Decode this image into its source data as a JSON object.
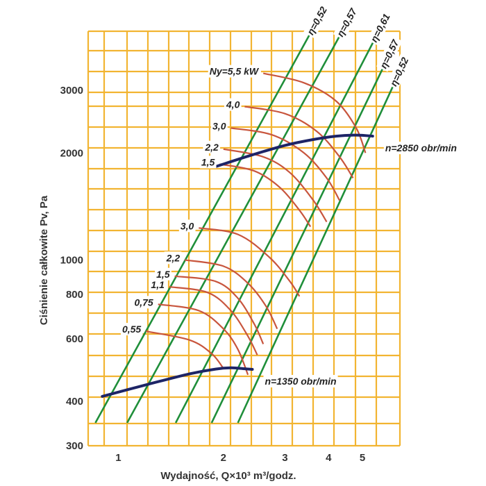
{
  "colors": {
    "grid": "#f2b431",
    "efficiency": "#1f8f3a",
    "power": "#c8553d",
    "speed": "#1d2466",
    "label_bg": "#ffffff"
  },
  "axes": {
    "xlabel": "Wydajność, Q×10³ m³/godz.",
    "ylabel": "Ciśnienie całkowite Pv, Pa"
  },
  "chart_data": {
    "type": "line",
    "title": "",
    "xlabel": "Wydajność, Q×10³ m³/godz.",
    "ylabel": "Ciśnienie całkowite Pv, Pa",
    "x_scale": "log",
    "y_scale": "log",
    "xlim": [
      0.82,
      6.4
    ],
    "ylim": [
      300,
      4400
    ],
    "x_ticks": [
      {
        "value": 1,
        "label": "1"
      },
      {
        "value": 2,
        "label": "2"
      },
      {
        "value": 3,
        "label": "3"
      },
      {
        "value": 4,
        "label": "4"
      },
      {
        "value": 5,
        "label": "5"
      }
    ],
    "y_ticks": [
      {
        "value": 300,
        "label": "300"
      },
      {
        "value": 400,
        "label": "400"
      },
      {
        "value": 600,
        "label": "600"
      },
      {
        "value": 800,
        "label": "800"
      },
      {
        "value": 1000,
        "label": "1000"
      },
      {
        "value": 2000,
        "label": "2000"
      },
      {
        "value": 3000,
        "label": "3000"
      }
    ],
    "speed_curves": [
      {
        "name": "n=1350 obr/min",
        "points": [
          [
            0.9,
            413
          ],
          [
            1.2,
            445
          ],
          [
            1.6,
            478
          ],
          [
            1.9,
            493
          ],
          [
            2.1,
            497
          ],
          [
            2.3,
            494
          ],
          [
            2.42,
            492
          ]
        ]
      },
      {
        "name": "n=2850 obr/min",
        "points": [
          [
            1.9,
            1830
          ],
          [
            2.4,
            1970
          ],
          [
            3.0,
            2100
          ],
          [
            3.6,
            2180
          ],
          [
            4.2,
            2230
          ],
          [
            4.8,
            2245
          ],
          [
            5.35,
            2230
          ]
        ]
      }
    ],
    "efficiency_lines": [
      {
        "name": "η=0,52",
        "points": [
          [
            0.86,
            348
          ],
          [
            3.55,
            4350
          ]
        ]
      },
      {
        "name": "η=0,57",
        "points": [
          [
            1.06,
            348
          ],
          [
            4.32,
            4300
          ]
        ]
      },
      {
        "name": "η=0,61",
        "points": [
          [
            1.46,
            348
          ],
          [
            5.4,
            4150
          ]
        ]
      },
      {
        "name": "η=0,57",
        "points": [
          [
            1.85,
            348
          ],
          [
            5.75,
            3500
          ]
        ]
      },
      {
        "name": "η=0,52",
        "points": [
          [
            2.2,
            348
          ],
          [
            6.15,
            3120
          ]
        ]
      }
    ],
    "power_curves": [
      {
        "label": "0,55",
        "points": [
          [
            1.2,
            630
          ],
          [
            1.6,
            595
          ],
          [
            1.85,
            545
          ],
          [
            2.0,
            495
          ]
        ]
      },
      {
        "label": "0,75",
        "points": [
          [
            1.3,
            750
          ],
          [
            1.7,
            720
          ],
          [
            2.0,
            640
          ],
          [
            2.2,
            560
          ],
          [
            2.35,
            475
          ]
        ]
      },
      {
        "label": "1,1",
        "points": [
          [
            1.4,
            840
          ],
          [
            1.8,
            810
          ],
          [
            2.1,
            720
          ],
          [
            2.35,
            610
          ],
          [
            2.5,
            540
          ]
        ]
      },
      {
        "label": "1,5",
        "points": [
          [
            1.45,
            900
          ],
          [
            1.9,
            870
          ],
          [
            2.2,
            780
          ],
          [
            2.45,
            660
          ],
          [
            2.6,
            580
          ]
        ]
      },
      {
        "label": "2,2",
        "points": [
          [
            1.55,
            1000
          ],
          [
            2.0,
            960
          ],
          [
            2.35,
            860
          ],
          [
            2.65,
            740
          ],
          [
            2.85,
            640
          ]
        ]
      },
      {
        "label": "3,0",
        "points": [
          [
            1.7,
            1230
          ],
          [
            2.2,
            1180
          ],
          [
            2.7,
            1020
          ],
          [
            3.1,
            870
          ],
          [
            3.3,
            790
          ]
        ]
      },
      {
        "label": "1,5",
        "points": [
          [
            1.95,
            1860
          ],
          [
            2.45,
            1780
          ],
          [
            2.9,
            1600
          ],
          [
            3.3,
            1380
          ],
          [
            3.55,
            1240
          ]
        ]
      },
      {
        "label": "2,2",
        "points": [
          [
            2.0,
            2050
          ],
          [
            2.6,
            1950
          ],
          [
            3.1,
            1760
          ],
          [
            3.6,
            1480
          ],
          [
            3.95,
            1280
          ]
        ]
      },
      {
        "label": "3,0",
        "points": [
          [
            2.1,
            2350
          ],
          [
            2.75,
            2250
          ],
          [
            3.4,
            2000
          ],
          [
            3.95,
            1700
          ],
          [
            4.3,
            1470
          ]
        ]
      },
      {
        "label": "4,0",
        "points": [
          [
            2.3,
            2700
          ],
          [
            3.0,
            2580
          ],
          [
            3.7,
            2300
          ],
          [
            4.3,
            1950
          ],
          [
            4.7,
            1700
          ]
        ]
      },
      {
        "label": "Ny=5,5 kW",
        "points": [
          [
            2.6,
            3350
          ],
          [
            3.4,
            3150
          ],
          [
            4.2,
            2800
          ],
          [
            4.8,
            2350
          ],
          [
            5.1,
            2000
          ]
        ]
      }
    ]
  }
}
